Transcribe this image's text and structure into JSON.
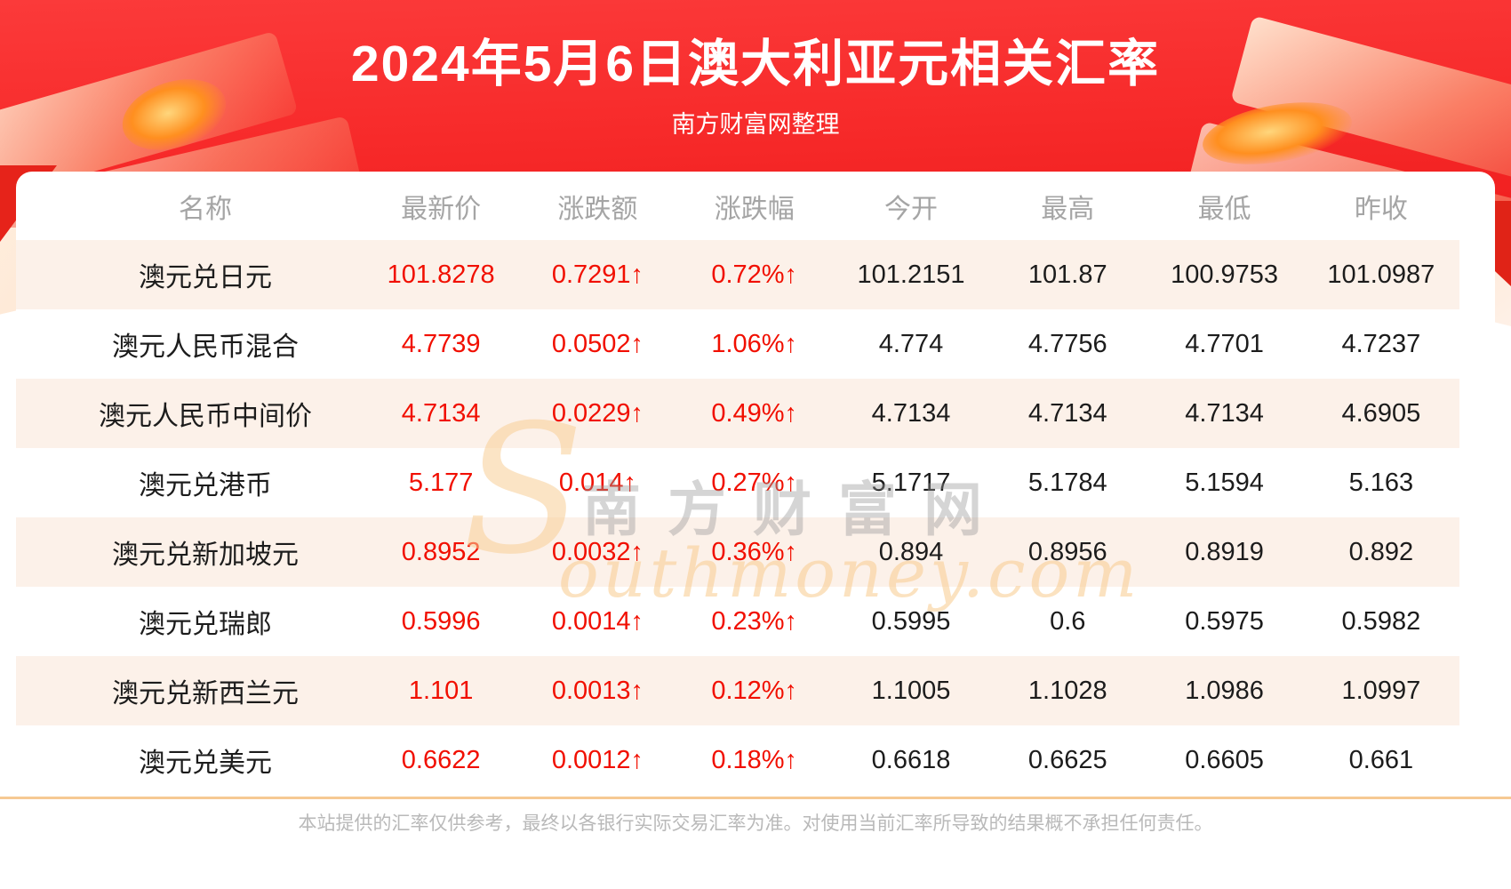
{
  "header": {
    "title": "2024年5月6日澳大利亚元相关汇率",
    "subtitle": "南方财富网整理"
  },
  "table": {
    "columns": [
      "名称",
      "最新价",
      "涨跌额",
      "涨跌幅",
      "今开",
      "最高",
      "最低",
      "昨收"
    ],
    "rows": [
      {
        "name": "澳元兑日元",
        "latest": "101.8278",
        "change": "0.7291↑",
        "change_pct": "0.72%↑",
        "open": "101.2151",
        "high": "101.87",
        "low": "100.9753",
        "prev_close": "101.0987"
      },
      {
        "name": "澳元人民币混合",
        "latest": "4.7739",
        "change": "0.0502↑",
        "change_pct": "1.06%↑",
        "open": "4.774",
        "high": "4.7756",
        "low": "4.7701",
        "prev_close": "4.7237"
      },
      {
        "name": "澳元人民币中间价",
        "latest": "4.7134",
        "change": "0.0229↑",
        "change_pct": "0.49%↑",
        "open": "4.7134",
        "high": "4.7134",
        "low": "4.7134",
        "prev_close": "4.6905"
      },
      {
        "name": "澳元兑港币",
        "latest": "5.177",
        "change": "0.014↑",
        "change_pct": "0.27%↑",
        "open": "5.1717",
        "high": "5.1784",
        "low": "5.1594",
        "prev_close": "5.163"
      },
      {
        "name": "澳元兑新加坡元",
        "latest": "0.8952",
        "change": "0.0032↑",
        "change_pct": "0.36%↑",
        "open": "0.894",
        "high": "0.8956",
        "low": "0.8919",
        "prev_close": "0.892"
      },
      {
        "name": "澳元兑瑞郎",
        "latest": "0.5996",
        "change": "0.0014↑",
        "change_pct": "0.23%↑",
        "open": "0.5995",
        "high": "0.6",
        "low": "0.5975",
        "prev_close": "0.5982"
      },
      {
        "name": "澳元兑新西兰元",
        "latest": "1.101",
        "change": "0.0013↑",
        "change_pct": "0.12%↑",
        "open": "1.1005",
        "high": "1.1028",
        "low": "1.0986",
        "prev_close": "1.0997"
      },
      {
        "name": "澳元兑美元",
        "latest": "0.6622",
        "change": "0.0012↑",
        "change_pct": "0.18%↑",
        "open": "0.6618",
        "high": "0.6625",
        "low": "0.6605",
        "prev_close": "0.661"
      }
    ]
  },
  "watermark": {
    "cn": "南方财富网",
    "en_initial": "S",
    "en_rest": "outhmoney.com"
  },
  "footer": {
    "disclaimer": "本站提供的汇率仅供参考，最终以各银行实际交易汇率为准。对使用当前汇率所导致的结果概不承担任何责任。"
  },
  "colors": {
    "header_red_top": "#fb3a3a",
    "header_red_bottom": "#ef1e1e",
    "up_red": "#f10f00",
    "row_alt_bg": "#fcf1e9",
    "header_text_gray": "#a5a5a5",
    "divider_tan": "#f6c993",
    "footer_gray": "#b9b9b9"
  }
}
